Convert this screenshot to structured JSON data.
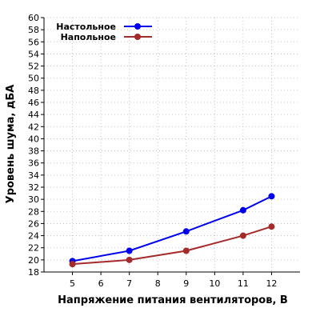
{
  "chart_data": {
    "type": "line",
    "xlabel": "Напряжение питания вентиляторов, В",
    "ylabel": "Уровень шума, дБА",
    "xlim": [
      4,
      13
    ],
    "ylim": [
      18,
      60
    ],
    "x_ticks": [
      5,
      6,
      7,
      8,
      9,
      10,
      11,
      12
    ],
    "y_ticks": [
      18,
      20,
      22,
      24,
      26,
      28,
      30,
      32,
      34,
      36,
      38,
      40,
      42,
      44,
      46,
      48,
      50,
      52,
      54,
      56,
      58,
      60
    ],
    "grid": true,
    "legend_position": "top-left",
    "series": [
      {
        "name": "Настольное",
        "color": "#0000ee",
        "x": [
          5,
          7,
          9,
          11,
          12
        ],
        "values": [
          19.8,
          21.5,
          24.7,
          28.2,
          30.5
        ]
      },
      {
        "name": "Напольное",
        "color": "#a52a2a",
        "x": [
          5,
          7,
          9,
          11,
          12
        ],
        "values": [
          19.3,
          20.0,
          21.5,
          24.0,
          25.5
        ]
      }
    ]
  }
}
